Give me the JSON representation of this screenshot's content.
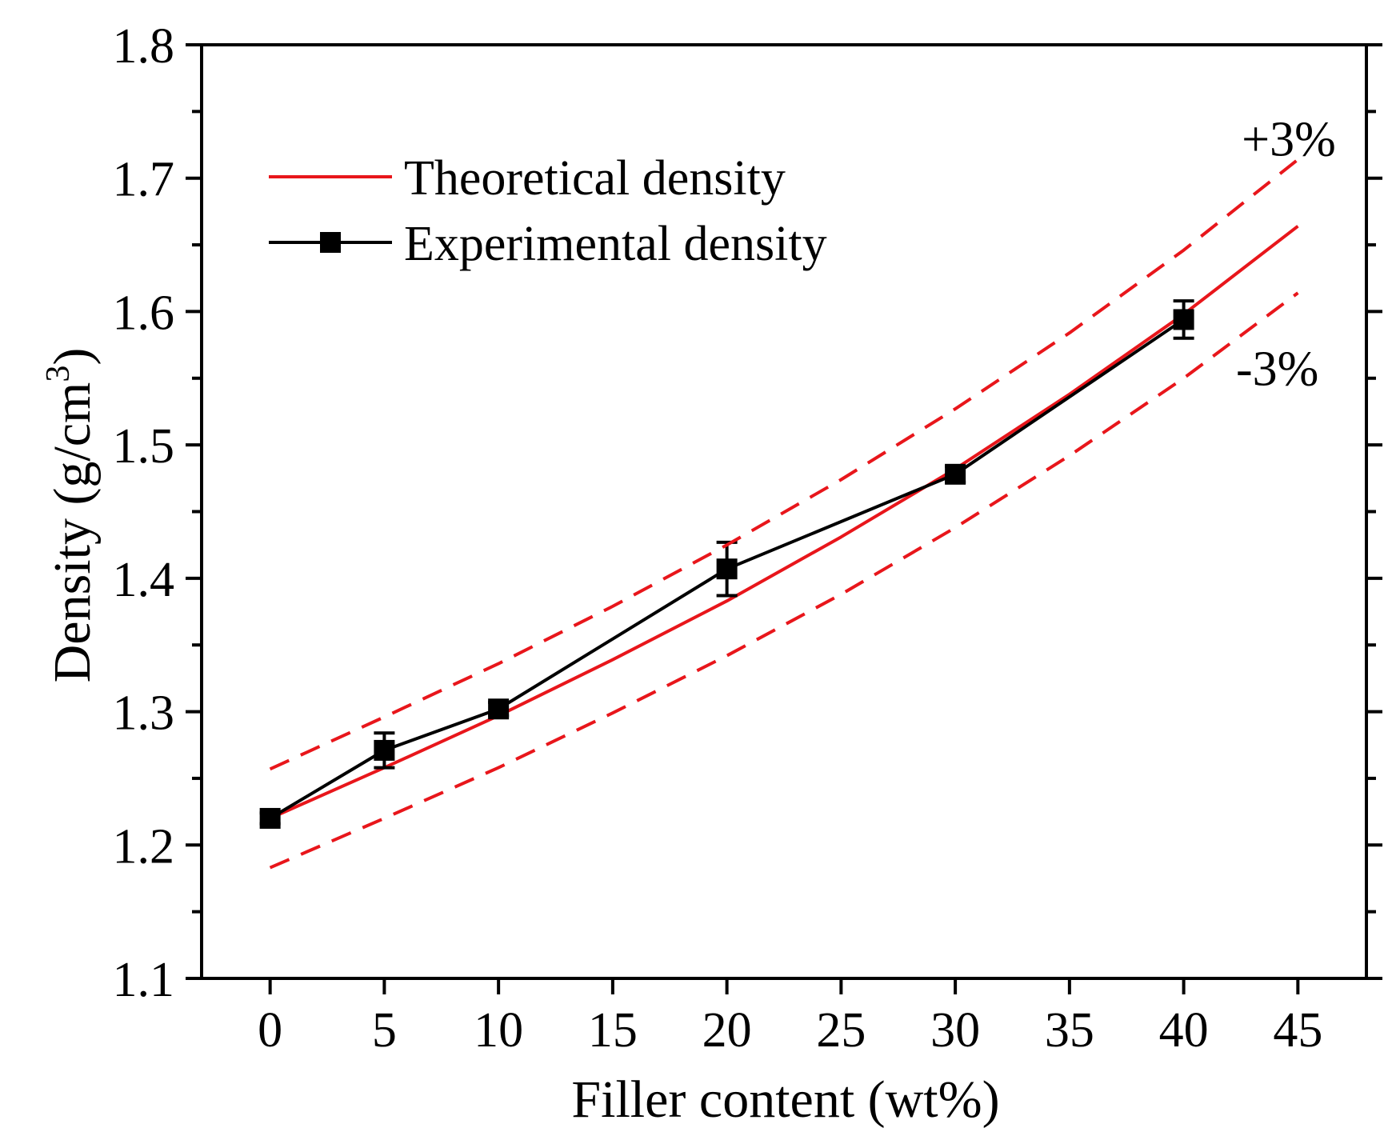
{
  "chart_data": {
    "type": "line",
    "title": "",
    "xlabel": "Filler content (wt%)",
    "ylabel_main": "Density (g/cm",
    "ylabel_sup": "3",
    "ylabel_close": ")",
    "xlim": [
      -3,
      48
    ],
    "ylim": [
      1.1,
      1.8
    ],
    "xticks": [
      0,
      5,
      10,
      15,
      20,
      25,
      30,
      35,
      40,
      45
    ],
    "xtick_labels": [
      "0",
      "5",
      "10",
      "15",
      "20",
      "25",
      "30",
      "35",
      "40",
      "45"
    ],
    "yticks": [
      1.1,
      1.2,
      1.3,
      1.4,
      1.5,
      1.6,
      1.7,
      1.8
    ],
    "ytick_labels": [
      "1.1",
      "1.2",
      "1.3",
      "1.4",
      "1.5",
      "1.6",
      "1.7",
      "1.8"
    ],
    "grid": false,
    "legend_position": "top-left",
    "series": [
      {
        "name": "Theoretical density",
        "style": "solid",
        "color": "#e8161b",
        "marker": "none",
        "x": [
          0,
          5,
          10,
          15,
          20,
          25,
          30,
          35,
          40,
          45
        ],
        "y": [
          1.22,
          1.258,
          1.297,
          1.339,
          1.383,
          1.431,
          1.482,
          1.538,
          1.598,
          1.664
        ]
      },
      {
        "name": "Experimental density",
        "style": "solid",
        "color": "#000000",
        "marker": "square",
        "x": [
          0,
          5,
          10,
          20,
          30,
          40
        ],
        "y": [
          1.22,
          1.271,
          1.302,
          1.407,
          1.478,
          1.594
        ],
        "error": [
          0.004,
          0.013,
          0.005,
          0.02,
          0.006,
          0.014
        ]
      },
      {
        "name": "+3%",
        "style": "dashed",
        "color": "#e8161b",
        "marker": "none",
        "show_in_legend": false,
        "x": [
          0,
          5,
          10,
          15,
          20,
          25,
          30,
          35,
          40,
          45
        ],
        "y": [
          1.257,
          1.296,
          1.336,
          1.379,
          1.425,
          1.474,
          1.527,
          1.584,
          1.646,
          1.714
        ]
      },
      {
        "name": "-3%",
        "style": "dashed",
        "color": "#e8161b",
        "marker": "none",
        "show_in_legend": false,
        "x": [
          0,
          5,
          10,
          15,
          20,
          25,
          30,
          35,
          40,
          45
        ],
        "y": [
          1.183,
          1.22,
          1.258,
          1.299,
          1.342,
          1.388,
          1.438,
          1.492,
          1.55,
          1.614
        ]
      }
    ],
    "annotations": [
      {
        "text": "+3%",
        "x": 44.6,
        "y": 1.73
      },
      {
        "text": "-3%",
        "x": 44.1,
        "y": 1.558
      }
    ]
  }
}
